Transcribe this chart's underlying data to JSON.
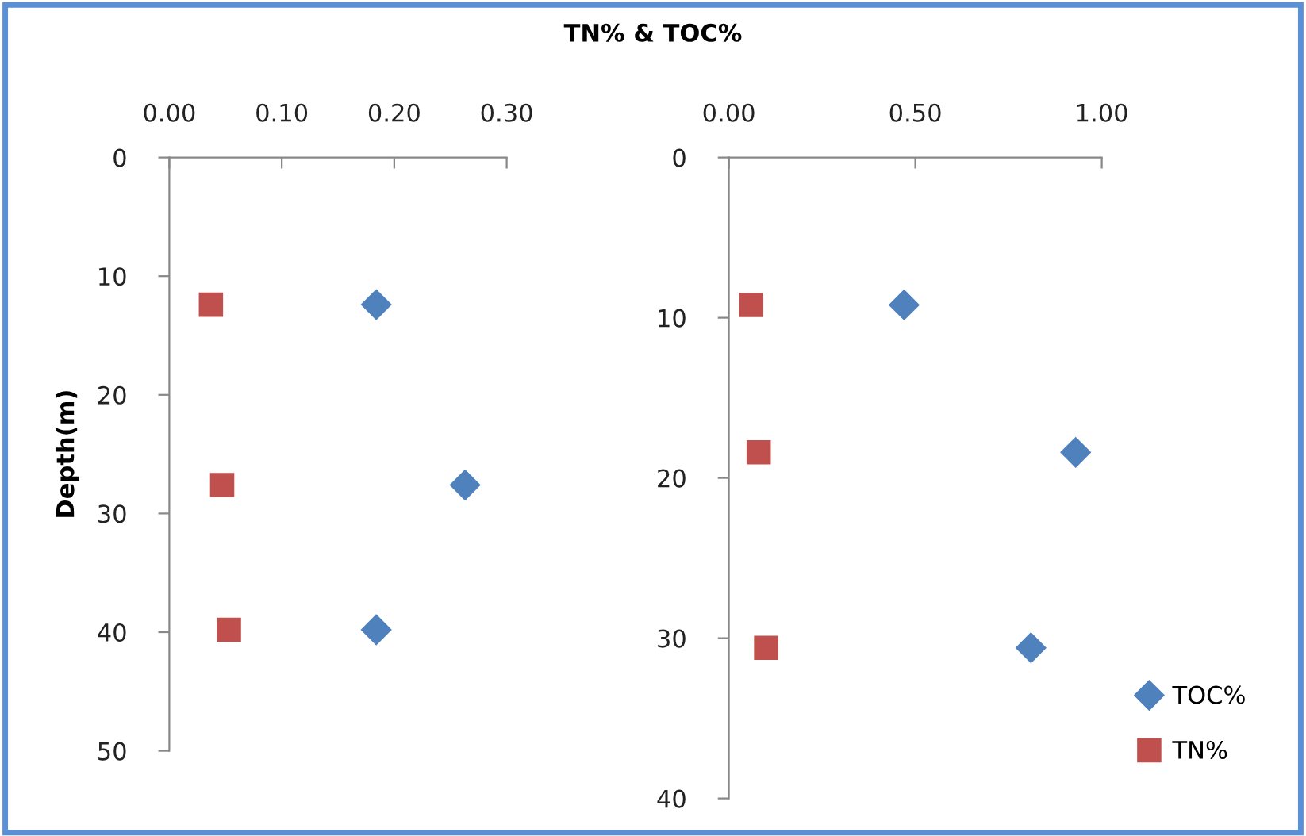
{
  "chart_data": [
    {
      "type": "scatter",
      "xlabel": "TN% & TOC%",
      "ylabel": "Depth(m)",
      "xlim": [
        0,
        0.3
      ],
      "xticks": [
        {
          "value": 0,
          "label": "0.00"
        },
        {
          "value": 0.1,
          "label": "0.10"
        },
        {
          "value": 0.2,
          "label": "0.20"
        },
        {
          "value": 0.3,
          "label": "0.30"
        }
      ],
      "ylim": [
        50,
        0
      ],
      "yticks": [
        0,
        10,
        20,
        30,
        40,
        50
      ],
      "grid": false,
      "legend": false,
      "series": [
        {
          "color": "#4f81bd",
          "marker": "diamond",
          "x": [
            0.184,
            0.263,
            0.184
          ],
          "values": [
            12.4,
            27.6,
            39.8
          ]
        },
        {
          "color": "#c0504d",
          "marker": "square",
          "x": [
            0.037,
            0.047,
            0.053
          ],
          "values": [
            12.4,
            27.6,
            39.8
          ]
        }
      ]
    },
    {
      "type": "scatter",
      "xlim": [
        0,
        1
      ],
      "xticks": [
        {
          "value": 0,
          "label": "0.00"
        },
        {
          "value": 0.5,
          "label": "0.50"
        },
        {
          "value": 1,
          "label": "1.00"
        }
      ],
      "ylim": [
        40,
        0
      ],
      "yticks": [
        0,
        10,
        20,
        30,
        40
      ],
      "grid": false,
      "legend": "bottom right",
      "series": [
        {
          "name": "TOC%",
          "color": "#4f81bd",
          "marker": "diamond",
          "x": [
            0.47,
            0.93,
            0.81
          ],
          "values": [
            9.2,
            18.4,
            30.6
          ]
        },
        {
          "name": "TN%",
          "color": "#c0504d",
          "marker": "square",
          "x": [
            0.06,
            0.08,
            0.1
          ],
          "values": [
            9.2,
            18.4,
            30.6
          ]
        }
      ]
    }
  ]
}
